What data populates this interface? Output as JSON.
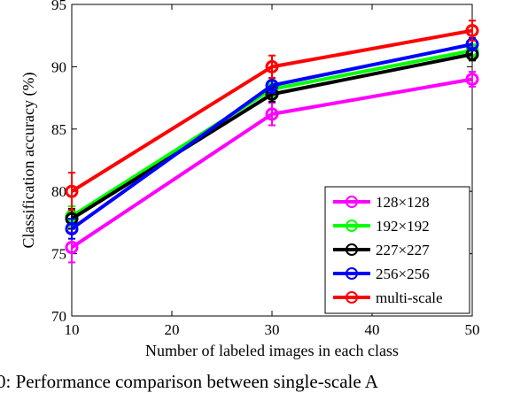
{
  "chart_data": {
    "type": "line",
    "x": [
      10,
      30,
      50
    ],
    "xlabel": "Number of labeled images in each class",
    "ylabel": "Classification accuracy (%)",
    "xlim": [
      10,
      50
    ],
    "ylim": [
      70,
      95
    ],
    "xticks": [
      "10",
      "20",
      "30",
      "40",
      "50"
    ],
    "yticks": [
      "70",
      "75",
      "80",
      "85",
      "90",
      "95"
    ],
    "grid": false,
    "legend_position": "bottom-right",
    "series": [
      {
        "name": "128×128",
        "color": "#ff00ff",
        "values": [
          75.5,
          86.2,
          89.0
        ],
        "errors": [
          1.2,
          0.9,
          0.6
        ]
      },
      {
        "name": "192×192",
        "color": "#00ff00",
        "values": [
          78.0,
          88.2,
          91.3
        ],
        "errors": [
          0.8,
          0.6,
          0.5
        ]
      },
      {
        "name": "227×227",
        "color": "#000000",
        "values": [
          77.8,
          87.8,
          91.0
        ],
        "errors": [
          0.8,
          0.6,
          0.5
        ]
      },
      {
        "name": "256×256",
        "color": "#0000ff",
        "values": [
          77.0,
          88.5,
          91.8
        ],
        "errors": [
          0.8,
          0.6,
          0.5
        ]
      },
      {
        "name": "multi-scale",
        "color": "#ff0000",
        "values": [
          80.0,
          90.0,
          92.9
        ],
        "errors": [
          1.5,
          0.9,
          0.8
        ]
      }
    ]
  },
  "caption": "0: Performance comparison between single-scale A"
}
